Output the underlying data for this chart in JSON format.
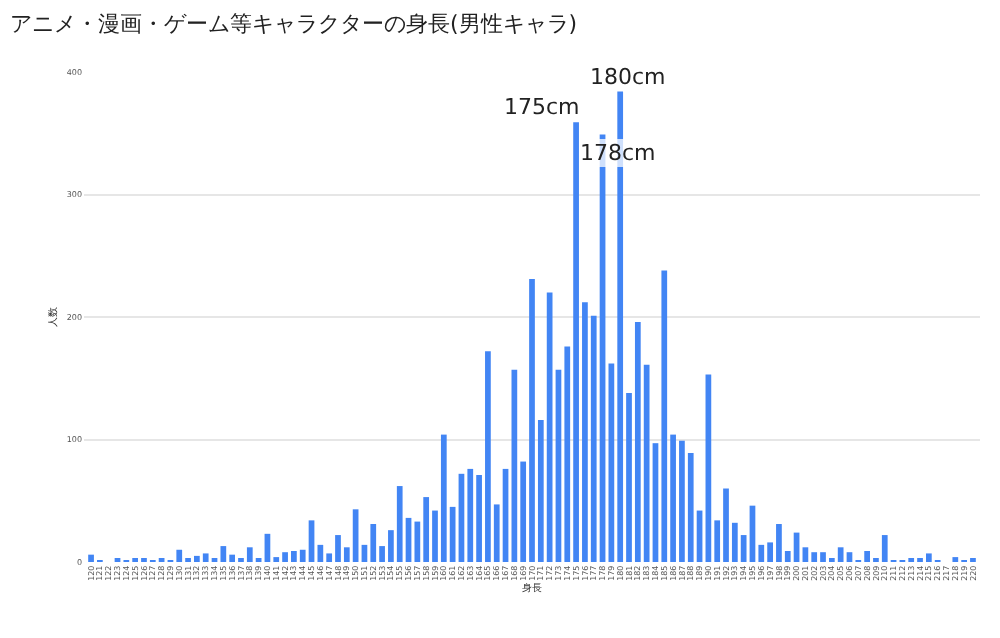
{
  "chart_data": {
    "type": "bar",
    "title": "アニメ・漫画・ゲーム等キャラクターの身長(男性キャラ)",
    "xlabel": "身長",
    "ylabel": "人数",
    "categories": [
      "120",
      "121",
      "122",
      "123",
      "124",
      "125",
      "126",
      "127",
      "128",
      "129",
      "130",
      "131",
      "132",
      "133",
      "134",
      "135",
      "136",
      "137",
      "138",
      "139",
      "140",
      "141",
      "142",
      "143",
      "144",
      "145",
      "146",
      "147",
      "148",
      "149",
      "150",
      "151",
      "152",
      "153",
      "154",
      "155",
      "156",
      "157",
      "158",
      "159",
      "160",
      "161",
      "162",
      "163",
      "164",
      "165",
      "166",
      "167",
      "168",
      "169",
      "170",
      "171",
      "172",
      "173",
      "174",
      "175",
      "176",
      "177",
      "178",
      "179",
      "180",
      "181",
      "182",
      "183",
      "184",
      "185",
      "186",
      "187",
      "188",
      "189",
      "190",
      "191",
      "192",
      "193",
      "194",
      "195",
      "196",
      "197",
      "198",
      "199",
      "200",
      "201",
      "202",
      "203",
      "204",
      "205",
      "206",
      "207",
      "208",
      "209",
      "210",
      "211",
      "212",
      "213",
      "214",
      "215",
      "216",
      "217",
      "218",
      "219",
      "220"
    ],
    "series": [
      {
        "color": "#4285f4",
        "values": [
          6,
          1,
          0,
          3,
          1,
          3,
          2,
          1,
          2,
          1,
          10,
          2,
          5,
          7,
          2,
          13,
          6,
          2,
          12,
          3,
          23,
          4,
          8,
          9,
          10,
          34,
          14,
          7,
          22,
          12,
          43,
          14,
          31,
          13,
          26,
          62,
          36,
          33,
          53,
          42,
          104,
          45,
          72,
          76,
          71,
          172,
          47,
          76,
          157,
          82,
          231,
          116,
          220,
          157,
          176,
          359,
          212,
          201,
          349,
          162,
          384,
          138,
          196,
          161,
          97,
          238,
          104,
          99,
          89,
          42,
          153,
          34,
          60,
          32,
          22,
          46,
          14,
          16,
          31,
          9,
          24,
          12,
          8,
          8,
          3,
          12,
          8,
          1,
          9,
          3,
          22,
          1,
          1,
          2,
          2,
          7,
          1,
          0,
          4,
          1,
          3
        ]
      }
    ],
    "ylim": [
      0,
      400
    ],
    "yticks": [
      0,
      100,
      200,
      300,
      400
    ],
    "grid": "y",
    "annotations": [
      {
        "text": "175cm",
        "x": "175",
        "y": 359
      },
      {
        "text": "178cm",
        "x": "178",
        "y": 349
      },
      {
        "text": "180cm",
        "x": "180",
        "y": 384
      }
    ]
  }
}
